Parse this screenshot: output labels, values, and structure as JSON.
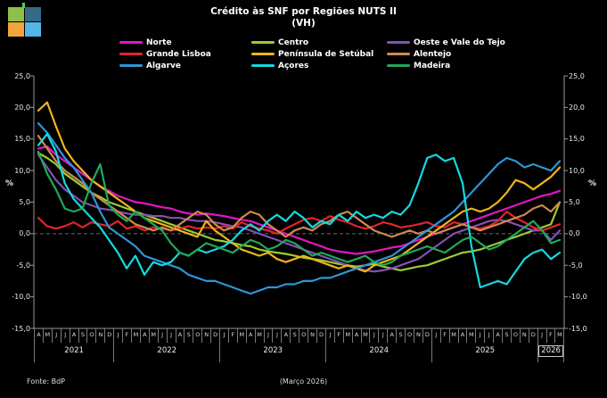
{
  "logo": {
    "square_colors": [
      "#8CC04A",
      "#336B87",
      "#F2A53C",
      "#52B6E6"
    ],
    "stub_color": "#4BD44B"
  },
  "title": {
    "line1": "Crédito às SNF por Regiões NUTS II",
    "line2": "(VH)"
  },
  "y_axis": {
    "label": "%",
    "ticks": [
      "25,0",
      "20,0",
      "15,0",
      "10,0",
      "5,0",
      "0,0",
      "-5,0",
      "-10,0",
      "-15,0"
    ],
    "min": -15,
    "max": 25,
    "step": 5
  },
  "x_axis": {
    "months": [
      "A",
      "M",
      "J",
      "J",
      "A",
      "S",
      "O",
      "N",
      "D",
      "J",
      "F",
      "M",
      "A",
      "M",
      "J",
      "J",
      "A",
      "S",
      "O",
      "N",
      "D",
      "J",
      "F",
      "M",
      "A",
      "M",
      "J",
      "J",
      "A",
      "S",
      "O",
      "N",
      "D",
      "J",
      "F",
      "M",
      "A",
      "M",
      "J",
      "J",
      "A",
      "S",
      "O",
      "N",
      "D",
      "J",
      "F",
      "M",
      "A",
      "M",
      "J",
      "J",
      "A",
      "S",
      "O",
      "N",
      "D",
      "J",
      "F",
      "M"
    ],
    "years": [
      {
        "label": "2021",
        "span": 9
      },
      {
        "label": "2022",
        "span": 12
      },
      {
        "label": "2023",
        "span": 12
      },
      {
        "label": "2024",
        "span": 12
      },
      {
        "label": "2025",
        "span": 12
      },
      {
        "label": "2026",
        "span": 3,
        "boxed": true
      }
    ]
  },
  "footer": {
    "source": "Fonte: BdP",
    "note": "(Março 2026)"
  },
  "chart_data": {
    "type": "line",
    "title": "Crédito às SNF por Regiões NUTS II (VH)",
    "ylabel": "%",
    "ylim": [
      -15,
      25
    ],
    "grid": "zero-line-dashed-only",
    "legend_position": "top",
    "x_start": "2021-04",
    "x_end": "2026-03",
    "frequency": "monthly",
    "series": [
      {
        "name": "Norte",
        "color": "#E316C3",
        "values": [
          13.5,
          13.8,
          12.5,
          11.5,
          10.5,
          9.5,
          8.5,
          7.5,
          6.8,
          6.0,
          5.5,
          5.0,
          4.8,
          4.5,
          4.2,
          4.0,
          3.5,
          3.2,
          3.0,
          3.2,
          3.0,
          2.8,
          2.5,
          2.2,
          2.0,
          1.5,
          1.0,
          0.5,
          0.0,
          -0.5,
          -1.0,
          -1.5,
          -2.0,
          -2.5,
          -2.8,
          -3.0,
          -3.2,
          -3.0,
          -2.8,
          -2.5,
          -2.2,
          -2.0,
          -1.5,
          -1.0,
          -0.5,
          0.0,
          0.5,
          1.0,
          1.5,
          2.0,
          2.5,
          3.0,
          3.5,
          4.0,
          4.5,
          5.0,
          5.5,
          6.0,
          6.3,
          6.8
        ]
      },
      {
        "name": "Centro",
        "color": "#9ACD32",
        "values": [
          12.8,
          12.0,
          11.0,
          9.5,
          8.5,
          7.5,
          6.5,
          5.8,
          5.0,
          4.5,
          4.0,
          3.5,
          3.0,
          2.5,
          2.0,
          1.5,
          1.0,
          0.5,
          0.0,
          -0.5,
          -1.0,
          -1.2,
          -1.5,
          -1.8,
          -2.0,
          -2.5,
          -2.8,
          -3.0,
          -3.2,
          -3.5,
          -3.8,
          -4.0,
          -4.2,
          -4.5,
          -4.8,
          -5.0,
          -5.2,
          -5.0,
          -4.8,
          -5.2,
          -5.5,
          -5.8,
          -5.5,
          -5.2,
          -5.0,
          -4.5,
          -4.0,
          -3.5,
          -3.0,
          -2.8,
          -2.5,
          -2.0,
          -1.5,
          -1.0,
          -0.5,
          0.0,
          0.5,
          1.0,
          1.5,
          5.0
        ]
      },
      {
        "name": "Oeste e Vale do Tejo",
        "color": "#8251B5",
        "values": [
          12.5,
          10.5,
          8.5,
          7.0,
          6.0,
          5.0,
          4.5,
          4.0,
          3.8,
          3.5,
          3.2,
          3.0,
          3.0,
          2.8,
          2.8,
          2.5,
          2.5,
          2.2,
          2.0,
          2.0,
          1.8,
          1.5,
          1.2,
          1.0,
          0.5,
          0.0,
          -0.5,
          -1.0,
          -1.5,
          -2.0,
          -2.5,
          -3.0,
          -3.5,
          -4.0,
          -4.5,
          -5.0,
          -5.5,
          -5.8,
          -6.0,
          -5.8,
          -5.5,
          -5.0,
          -4.5,
          -4.0,
          -3.0,
          -2.0,
          -1.0,
          0.0,
          0.5,
          1.0,
          1.5,
          2.0,
          2.2,
          2.0,
          1.5,
          1.0,
          0.5,
          0.5,
          -1.0,
          0.5
        ]
      },
      {
        "name": "Grande Lisboa",
        "color": "#E3242B",
        "values": [
          2.5,
          1.2,
          0.8,
          1.2,
          1.8,
          1.0,
          1.8,
          1.5,
          1.2,
          2.0,
          0.8,
          1.2,
          0.5,
          1.0,
          0.8,
          0.5,
          0.8,
          1.2,
          0.8,
          1.0,
          0.8,
          1.2,
          0.8,
          1.8,
          1.2,
          0.8,
          0.5,
          0.0,
          0.8,
          1.5,
          2.2,
          2.5,
          2.0,
          2.8,
          2.2,
          1.8,
          1.2,
          0.8,
          1.2,
          1.8,
          1.5,
          1.0,
          1.2,
          1.5,
          1.8,
          1.2,
          1.0,
          1.8,
          1.5,
          1.0,
          0.8,
          1.2,
          2.0,
          3.5,
          2.5,
          1.8,
          1.0,
          0.5,
          1.0,
          1.5
        ]
      },
      {
        "name": "Península de Setúbal",
        "color": "#F0B41C",
        "values": [
          19.5,
          20.8,
          17.0,
          13.5,
          11.5,
          10.0,
          8.5,
          7.5,
          6.5,
          5.5,
          4.5,
          3.5,
          2.5,
          2.0,
          1.5,
          1.0,
          0.5,
          0.0,
          -0.5,
          2.0,
          0.5,
          -0.5,
          -1.5,
          -2.5,
          -3.0,
          -3.5,
          -3.0,
          -4.0,
          -4.5,
          -4.0,
          -3.5,
          -4.0,
          -4.5,
          -5.0,
          -5.5,
          -5.0,
          -5.5,
          -6.0,
          -5.0,
          -4.5,
          -4.0,
          -3.5,
          -2.5,
          -1.5,
          -0.5,
          0.5,
          1.5,
          2.5,
          3.5,
          4.0,
          3.5,
          4.0,
          5.0,
          6.5,
          8.5,
          8.0,
          7.0,
          8.0,
          9.0,
          10.5
        ]
      },
      {
        "name": "Alentejo",
        "color": "#D0894E",
        "values": [
          15.5,
          13.5,
          11.5,
          10.0,
          9.0,
          8.0,
          6.5,
          5.5,
          4.5,
          3.5,
          2.5,
          1.5,
          1.0,
          0.5,
          1.0,
          0.5,
          1.5,
          2.5,
          3.5,
          3.0,
          1.5,
          0.5,
          1.0,
          2.5,
          3.5,
          3.0,
          1.5,
          0.5,
          -0.5,
          0.5,
          1.0,
          0.5,
          1.5,
          2.0,
          3.0,
          3.5,
          2.5,
          1.5,
          0.5,
          0.0,
          -0.5,
          0.0,
          0.5,
          0.0,
          0.5,
          0.0,
          0.5,
          1.0,
          1.5,
          1.0,
          0.5,
          1.0,
          1.5,
          2.0,
          2.5,
          3.0,
          4.0,
          4.5,
          3.5,
          5.0
        ]
      },
      {
        "name": "Algarve",
        "color": "#2D96D8",
        "values": [
          17.5,
          16.0,
          14.0,
          12.0,
          10.5,
          8.5,
          6.5,
          3.5,
          1.0,
          0.0,
          -1.0,
          -2.0,
          -3.5,
          -4.0,
          -4.5,
          -5.0,
          -5.5,
          -6.5,
          -7.0,
          -7.5,
          -7.5,
          -8.0,
          -8.5,
          -9.0,
          -9.5,
          -9.0,
          -8.5,
          -8.5,
          -8.0,
          -8.0,
          -7.5,
          -7.5,
          -7.0,
          -7.0,
          -6.5,
          -6.0,
          -5.5,
          -5.0,
          -4.5,
          -4.0,
          -3.5,
          -2.5,
          -1.5,
          -0.5,
          0.5,
          1.5,
          2.5,
          3.5,
          5.0,
          6.5,
          8.0,
          9.5,
          11.0,
          12.0,
          11.5,
          10.5,
          11.0,
          10.5,
          10.0,
          11.5
        ]
      },
      {
        "name": "Açores",
        "color": "#16D8E0",
        "values": [
          14.0,
          15.8,
          13.0,
          8.0,
          5.5,
          4.0,
          2.5,
          1.0,
          -1.0,
          -3.0,
          -5.5,
          -3.5,
          -6.5,
          -4.5,
          -5.0,
          -4.5,
          -3.0,
          -3.5,
          -2.5,
          -3.0,
          -2.5,
          -2.0,
          -1.0,
          0.5,
          1.5,
          0.5,
          2.0,
          3.0,
          2.0,
          3.5,
          2.5,
          1.0,
          2.0,
          1.5,
          3.0,
          2.0,
          3.5,
          2.5,
          3.0,
          2.5,
          3.5,
          3.0,
          4.5,
          8.0,
          12.0,
          12.5,
          11.5,
          12.0,
          8.0,
          -2.0,
          -8.5,
          -8.0,
          -7.5,
          -8.0,
          -6.0,
          -4.0,
          -3.0,
          -2.5,
          -4.0,
          -3.0
        ]
      },
      {
        "name": "Madeira",
        "color": "#22A95B",
        "values": [
          13.0,
          9.5,
          7.0,
          4.0,
          3.5,
          4.0,
          8.0,
          11.0,
          4.5,
          3.0,
          2.0,
          3.5,
          2.5,
          1.5,
          0.5,
          -1.5,
          -3.0,
          -3.5,
          -2.5,
          -1.5,
          -2.0,
          -2.5,
          -3.0,
          -2.0,
          -1.0,
          -1.5,
          -2.5,
          -2.0,
          -1.0,
          -1.5,
          -2.5,
          -3.5,
          -3.0,
          -3.5,
          -4.0,
          -4.5,
          -4.0,
          -3.5,
          -4.5,
          -5.0,
          -4.5,
          -3.5,
          -3.0,
          -2.5,
          -2.0,
          -2.5,
          -3.0,
          -2.0,
          -1.0,
          -0.5,
          -1.5,
          -2.5,
          -2.0,
          -1.0,
          0.0,
          1.0,
          2.0,
          0.5,
          -1.5,
          -1.0
        ]
      }
    ]
  }
}
